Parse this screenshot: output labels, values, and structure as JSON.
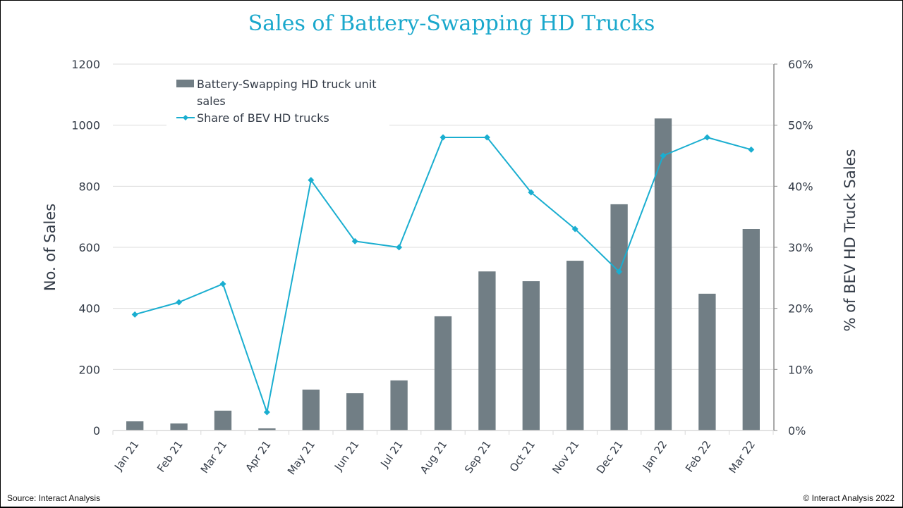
{
  "chart_data": {
    "type": "bar",
    "title": "Sales of Battery-Swapping HD Trucks",
    "xlabel": "",
    "ylabel": "No. of Sales",
    "y2label": "% of BEV HD Truck Sales",
    "ylim": [
      0,
      1200
    ],
    "y2lim": [
      0,
      0.6
    ],
    "yticks": [
      "0",
      "200",
      "400",
      "600",
      "800",
      "1000",
      "1200"
    ],
    "y2ticks": [
      "0%",
      "10%",
      "20%",
      "30%",
      "40%",
      "50%",
      "60%"
    ],
    "grid": true,
    "legend_position": "top-left",
    "categories": [
      "Jan 21",
      "Feb 21",
      "Mar 21",
      "Apr 21",
      "May 21",
      "Jun 21",
      "Jul 21",
      "Aug 21",
      "Sep 21",
      "Oct 21",
      "Nov 21",
      "Dec 21",
      "Jan 22",
      "Feb 22",
      "Mar 22"
    ],
    "series": [
      {
        "name": "Battery-Swapping HD truck unit sales",
        "type": "bar",
        "axis": "left",
        "color": "#717e85",
        "values": [
          30,
          23,
          65,
          7,
          134,
          122,
          164,
          374,
          521,
          489,
          556,
          741,
          1022,
          448,
          660
        ]
      },
      {
        "name": "Share of BEV HD trucks",
        "type": "line",
        "axis": "right",
        "color": "#1aaed0",
        "marker": "diamond",
        "values": [
          0.19,
          0.21,
          0.24,
          0.03,
          0.41,
          0.31,
          0.3,
          0.48,
          0.48,
          0.39,
          0.33,
          0.26,
          0.45,
          0.48,
          0.46
        ]
      }
    ]
  },
  "legend": {
    "bar_label_line1": "Battery-Swapping HD truck unit",
    "bar_label_line2": "sales",
    "line_label": "Share of BEV HD trucks"
  },
  "footer": {
    "source": "Source: Interact Analysis",
    "copyright": "© Interact Analysis 2022"
  }
}
